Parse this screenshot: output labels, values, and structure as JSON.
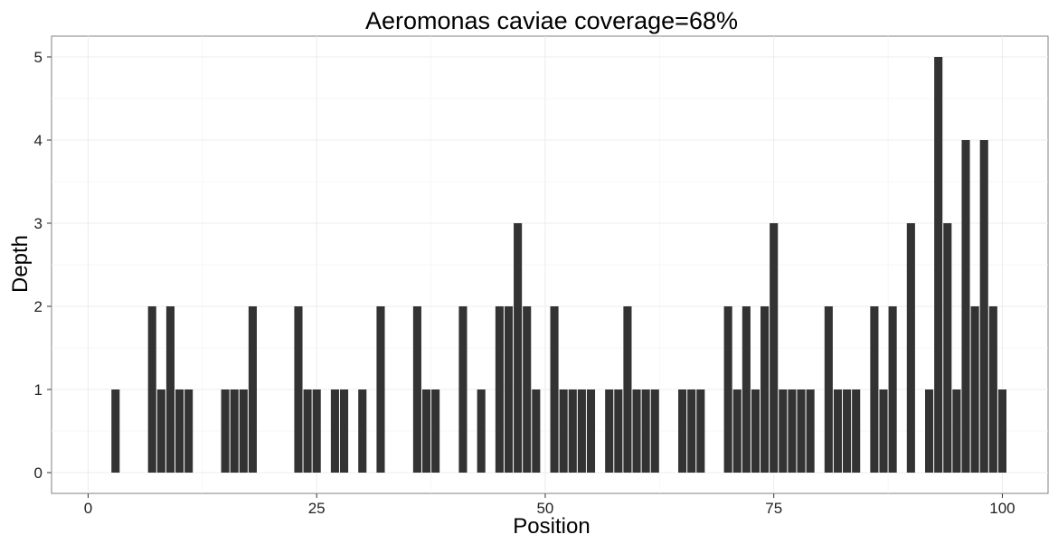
{
  "chart_data": {
    "type": "bar",
    "title": "Aeromonas caviae coverage=68%",
    "xlabel": "Position",
    "ylabel": "Depth",
    "xlim": [
      -4,
      105
    ],
    "ylim": [
      -0.25,
      5.25
    ],
    "x_ticks": [
      0,
      25,
      50,
      75,
      100
    ],
    "y_ticks": [
      0,
      1,
      2,
      3,
      4,
      5
    ],
    "grid": true,
    "bar_color": "#333333",
    "x": [
      3,
      7,
      8,
      9,
      10,
      11,
      15,
      16,
      17,
      18,
      23,
      24,
      25,
      27,
      28,
      30,
      32,
      36,
      37,
      38,
      41,
      43,
      45,
      46,
      47,
      48,
      49,
      51,
      52,
      53,
      54,
      55,
      57,
      58,
      59,
      60,
      61,
      62,
      65,
      66,
      67,
      70,
      71,
      72,
      73,
      74,
      75,
      76,
      77,
      78,
      79,
      81,
      82,
      83,
      84,
      86,
      87,
      88,
      90,
      92,
      93,
      94,
      95,
      96,
      97,
      98,
      99,
      100
    ],
    "values": [
      1,
      2,
      1,
      2,
      1,
      1,
      1,
      1,
      1,
      2,
      2,
      1,
      1,
      1,
      1,
      1,
      2,
      2,
      1,
      1,
      2,
      1,
      2,
      2,
      3,
      2,
      1,
      2,
      1,
      1,
      1,
      1,
      1,
      1,
      2,
      1,
      1,
      1,
      1,
      1,
      1,
      2,
      1,
      2,
      1,
      2,
      3,
      1,
      1,
      1,
      1,
      2,
      1,
      1,
      1,
      2,
      1,
      2,
      3,
      1,
      5,
      3,
      1,
      4,
      2,
      4,
      2,
      1
    ]
  }
}
